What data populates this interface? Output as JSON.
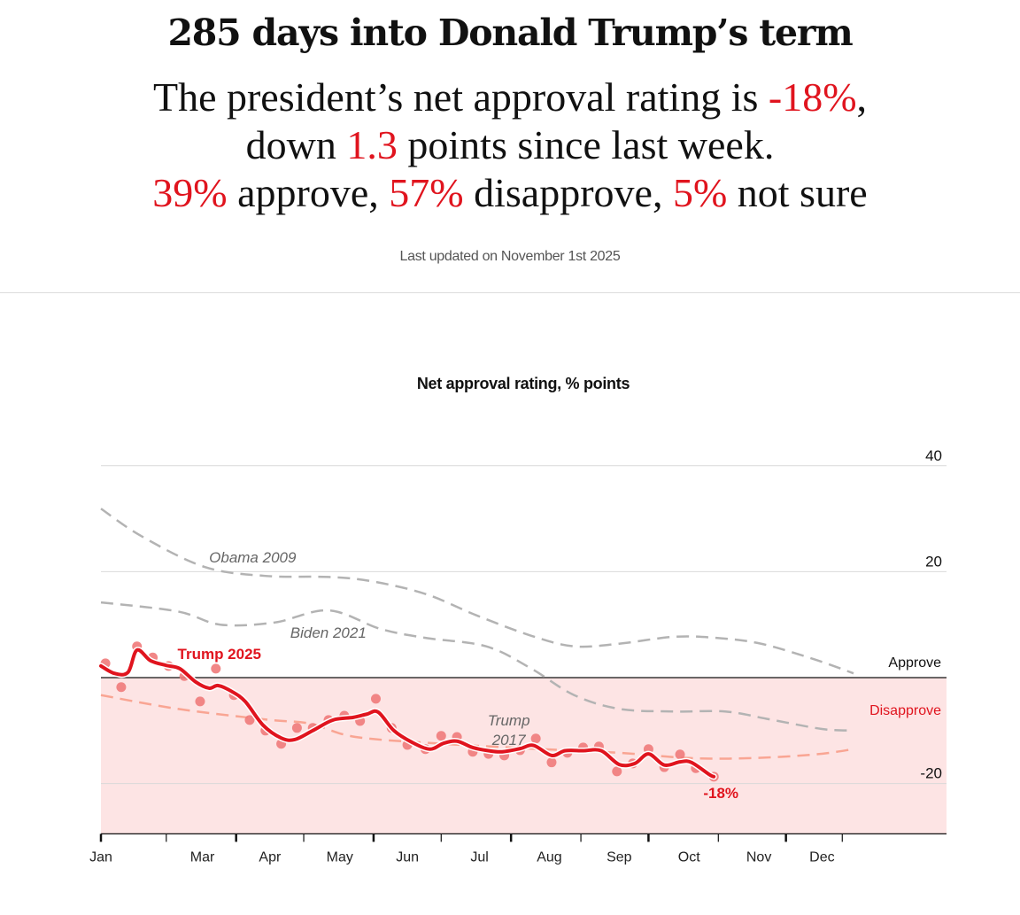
{
  "header": {
    "headline": "285 days into Donald Trump’s term",
    "summary": {
      "line1_prefix": "The president’s net approval rating is ",
      "net_approval": "-18%",
      "line1_suffix": ",",
      "line2_prefix": "down ",
      "weekly_change": "1.3",
      "line2_suffix": " points since last week.",
      "approve_pct": "39%",
      "approve_label": " approve, ",
      "disapprove_pct": "57%",
      "disapprove_label": " disapprove, ",
      "not_sure_pct": "5%",
      "not_sure_label": " not sure"
    },
    "last_updated": "Last updated on November 1st 2025"
  },
  "colors": {
    "accent_red": "#e0141e",
    "dot_red": "#f07a7a",
    "disapprove_fill": "#fde4e4",
    "comparison_gray": "#b3b3b3",
    "trump2017_salmon": "#f9a593"
  },
  "chart_data": {
    "type": "line",
    "title": "Net approval rating, % points",
    "xlabel": "",
    "ylabel": "",
    "x_unit": "days since inauguration (Jan 20)",
    "xlim": [
      0,
      334
    ],
    "ylim": [
      -29.5,
      40
    ],
    "y_ticks": [
      {
        "value": 40,
        "label": "40"
      },
      {
        "value": 20,
        "label": "20"
      },
      {
        "value": -20,
        "label": "-20"
      }
    ],
    "zero_line_labels": {
      "above": "Approve",
      "below": "Disapprove"
    },
    "x_ticks": [
      0,
      29,
      60,
      90,
      121,
      151,
      182,
      213,
      243,
      274,
      304,
      329
    ],
    "x_tick_labels": [
      {
        "label": "Jan",
        "day": 0
      },
      {
        "label": "Mar",
        "day": 45
      },
      {
        "label": "Apr",
        "day": 75
      },
      {
        "label": "May",
        "day": 106
      },
      {
        "label": "Jun",
        "day": 136
      },
      {
        "label": "Jul",
        "day": 168
      },
      {
        "label": "Aug",
        "day": 199
      },
      {
        "label": "Sep",
        "day": 230
      },
      {
        "label": "Oct",
        "day": 261
      },
      {
        "label": "Nov",
        "day": 292
      },
      {
        "label": "Dec",
        "day": 320
      }
    ],
    "grid": true,
    "shaded_region": {
      "label": "Disapprove",
      "from": 0,
      "to": -29.5
    },
    "series": [
      {
        "name": "Obama 2009",
        "style": "dashed-gray",
        "label_anchor": {
          "day": 48,
          "value": 21.7
        },
        "points": [
          [
            0,
            31.9
          ],
          [
            18,
            26.7
          ],
          [
            46,
            20.9
          ],
          [
            73,
            19.2
          ],
          [
            101,
            19.0
          ],
          [
            120,
            18.2
          ],
          [
            144,
            15.8
          ],
          [
            167,
            11.7
          ],
          [
            191,
            7.9
          ],
          [
            210,
            5.9
          ],
          [
            230,
            6.4
          ],
          [
            254,
            7.7
          ],
          [
            273,
            7.5
          ],
          [
            293,
            6.4
          ],
          [
            317,
            3.4
          ],
          [
            334,
            0.8
          ]
        ]
      },
      {
        "name": "Biden 2021",
        "style": "dashed-gray",
        "label_anchor": {
          "day": 84,
          "value": 7.5
        },
        "points": [
          [
            0,
            14.2
          ],
          [
            34,
            12.5
          ],
          [
            53,
            10.0
          ],
          [
            77,
            10.4
          ],
          [
            101,
            12.7
          ],
          [
            124,
            9.2
          ],
          [
            144,
            7.5
          ],
          [
            171,
            5.9
          ],
          [
            191,
            1.7
          ],
          [
            210,
            -3.3
          ],
          [
            230,
            -5.9
          ],
          [
            254,
            -6.4
          ],
          [
            277,
            -6.4
          ],
          [
            297,
            -7.9
          ],
          [
            320,
            -9.7
          ],
          [
            334,
            -10.0
          ]
        ]
      },
      {
        "name": "Trump 2017",
        "style": "dashed-salmon",
        "label_anchor": {
          "day": 181,
          "value": -9.0
        },
        "points": [
          [
            0,
            -3.3
          ],
          [
            34,
            -5.9
          ],
          [
            73,
            -7.9
          ],
          [
            93,
            -8.7
          ],
          [
            113,
            -11.2
          ],
          [
            152,
            -12.5
          ],
          [
            191,
            -13.4
          ],
          [
            230,
            -14.2
          ],
          [
            262,
            -15.2
          ],
          [
            289,
            -15.2
          ],
          [
            317,
            -14.5
          ],
          [
            334,
            -13.5
          ]
        ]
      },
      {
        "name": "Trump 2025",
        "style": "solid-red",
        "label_anchor": {
          "day": 34,
          "value": 3.5
        },
        "end_label": "-18%",
        "smoothed": [
          [
            0,
            2.2
          ],
          [
            6,
            0.8
          ],
          [
            12,
            1.0
          ],
          [
            16,
            5.2
          ],
          [
            22,
            3.2
          ],
          [
            29,
            2.3
          ],
          [
            35,
            1.7
          ],
          [
            42,
            -0.8
          ],
          [
            48,
            -2.0
          ],
          [
            52,
            -1.5
          ],
          [
            58,
            -2.6
          ],
          [
            64,
            -4.5
          ],
          [
            72,
            -9.0
          ],
          [
            80,
            -11.4
          ],
          [
            86,
            -11.7
          ],
          [
            94,
            -10.0
          ],
          [
            103,
            -8.0
          ],
          [
            112,
            -7.5
          ],
          [
            118,
            -6.9
          ],
          [
            123,
            -6.5
          ],
          [
            130,
            -10.0
          ],
          [
            138,
            -12.2
          ],
          [
            146,
            -13.5
          ],
          [
            152,
            -12.4
          ],
          [
            158,
            -12.0
          ],
          [
            165,
            -13.2
          ],
          [
            172,
            -13.8
          ],
          [
            178,
            -14.0
          ],
          [
            186,
            -13.4
          ],
          [
            192,
            -12.8
          ],
          [
            200,
            -14.7
          ],
          [
            206,
            -13.8
          ],
          [
            214,
            -13.8
          ],
          [
            222,
            -13.8
          ],
          [
            230,
            -16.4
          ],
          [
            237,
            -16.2
          ],
          [
            243,
            -14.4
          ],
          [
            250,
            -16.5
          ],
          [
            257,
            -15.9
          ],
          [
            262,
            -16.0
          ],
          [
            270,
            -18.3
          ],
          [
            272,
            -18.7
          ]
        ],
        "dots": [
          [
            2,
            2.7
          ],
          [
            9,
            -1.8
          ],
          [
            16,
            5.9
          ],
          [
            23,
            3.8
          ],
          [
            30,
            2.2
          ],
          [
            37,
            0.3
          ],
          [
            44,
            -4.5
          ],
          [
            51,
            1.7
          ],
          [
            59,
            -3.3
          ],
          [
            66,
            -8.0
          ],
          [
            73,
            -10.0
          ],
          [
            80,
            -12.5
          ],
          [
            87,
            -9.5
          ],
          [
            94,
            -9.5
          ],
          [
            101,
            -8.0
          ],
          [
            108,
            -7.2
          ],
          [
            115,
            -8.2
          ],
          [
            122,
            -4.0
          ],
          [
            129,
            -9.5
          ],
          [
            136,
            -12.7
          ],
          [
            144,
            -13.5
          ],
          [
            151,
            -11.0
          ],
          [
            158,
            -11.2
          ],
          [
            165,
            -14.0
          ],
          [
            172,
            -14.4
          ],
          [
            179,
            -14.7
          ],
          [
            186,
            -13.7
          ],
          [
            193,
            -11.5
          ],
          [
            200,
            -16.0
          ],
          [
            207,
            -14.2
          ],
          [
            214,
            -13.2
          ],
          [
            221,
            -13.0
          ],
          [
            229,
            -17.7
          ],
          [
            236,
            -16.2
          ],
          [
            243,
            -13.5
          ],
          [
            250,
            -16.9
          ],
          [
            257,
            -14.5
          ],
          [
            264,
            -17.1
          ],
          [
            272,
            -18.7
          ]
        ]
      }
    ]
  }
}
